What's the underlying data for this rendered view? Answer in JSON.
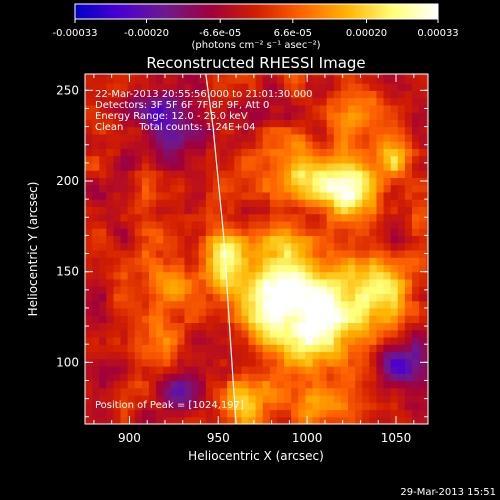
{
  "chart_data": {
    "type": "heatmap",
    "title": "Reconstructed RHESSI Image",
    "xlabel": "Heliocentric X (arcsec)",
    "ylabel": "Heliocentric Y (arcsec)",
    "xlim": [
      875,
      1068
    ],
    "ylim": [
      66,
      259
    ],
    "xticks": [
      900,
      950,
      1000,
      1050
    ],
    "yticks": [
      100,
      150,
      200,
      250
    ],
    "colorbar": {
      "range": [
        -0.00033,
        0.00033
      ],
      "tick_values": [
        -0.00033,
        -0.0002,
        -6.6e-05,
        6.6e-05,
        0.0002,
        0.00033
      ],
      "tick_labels": [
        "-0.00033",
        "-0.00020",
        "-6.6e-05",
        "6.6e-05",
        "0.00020",
        "0.00033"
      ],
      "unit_label": "(photons cm⁻² s⁻¹ asec⁻²)",
      "colors": [
        "#0000c8",
        "#4b00d2",
        "#6e1a8c",
        "#a0003c",
        "#d21e00",
        "#ff6400",
        "#ffb400",
        "#ffff78",
        "#ffffff"
      ]
    },
    "annotations": [
      "22-Mar-2013 20:55:56.000 to 21:01:30.000",
      "Detectors: 3F 5F 6F 7F 8F 9F, Att 0",
      "Energy Range: 12.0 - 25.0 keV",
      "Clean     Total counts: 1.24E+04"
    ],
    "peak_label": "Position of Peak = [1024,197]",
    "peak": [
      1024,
      197
    ],
    "limb_curve": [
      [
        943,
        259
      ],
      [
        947,
        230
      ],
      [
        950,
        200
      ],
      [
        953,
        170
      ],
      [
        955,
        140
      ],
      [
        957,
        110
      ],
      [
        959,
        80
      ],
      [
        960,
        66
      ]
    ],
    "bright_sources": [
      {
        "x": 1024,
        "y": 197,
        "amp": 0.00033,
        "sigma": 12
      },
      {
        "x": 955,
        "y": 158,
        "amp": 0.00026,
        "sigma": 12
      },
      {
        "x": 990,
        "y": 150,
        "amp": 0.00025,
        "sigma": 14
      },
      {
        "x": 980,
        "y": 128,
        "amp": 0.00024,
        "sigma": 12
      },
      {
        "x": 1018,
        "y": 130,
        "amp": 0.00026,
        "sigma": 15
      },
      {
        "x": 1000,
        "y": 112,
        "amp": 0.00022,
        "sigma": 12
      },
      {
        "x": 1045,
        "y": 140,
        "amp": 0.00018,
        "sigma": 12
      },
      {
        "x": 1000,
        "y": 205,
        "amp": 0.0002,
        "sigma": 12
      },
      {
        "x": 1048,
        "y": 215,
        "amp": 0.00015,
        "sigma": 10
      },
      {
        "x": 1035,
        "y": 240,
        "amp": 0.00014,
        "sigma": 10
      },
      {
        "x": 965,
        "y": 75,
        "amp": 0.0002,
        "sigma": 10
      },
      {
        "x": 1005,
        "y": 78,
        "amp": 0.00018,
        "sigma": 10
      },
      {
        "x": 925,
        "y": 140,
        "amp": 0.00016,
        "sigma": 10
      },
      {
        "x": 915,
        "y": 115,
        "amp": 0.00012,
        "sigma": 10
      },
      {
        "x": 900,
        "y": 230,
        "amp": 0.00012,
        "sigma": 10
      }
    ],
    "dim_regions": [
      {
        "x": 915,
        "y": 235,
        "amp": -0.00025,
        "sigma": 14
      },
      {
        "x": 1055,
        "y": 100,
        "amp": -0.0002,
        "sigma": 12
      },
      {
        "x": 930,
        "y": 85,
        "amp": -0.00015,
        "sigma": 10
      }
    ]
  },
  "footer": {
    "timestamp": "29-Mar-2013 15:51"
  }
}
